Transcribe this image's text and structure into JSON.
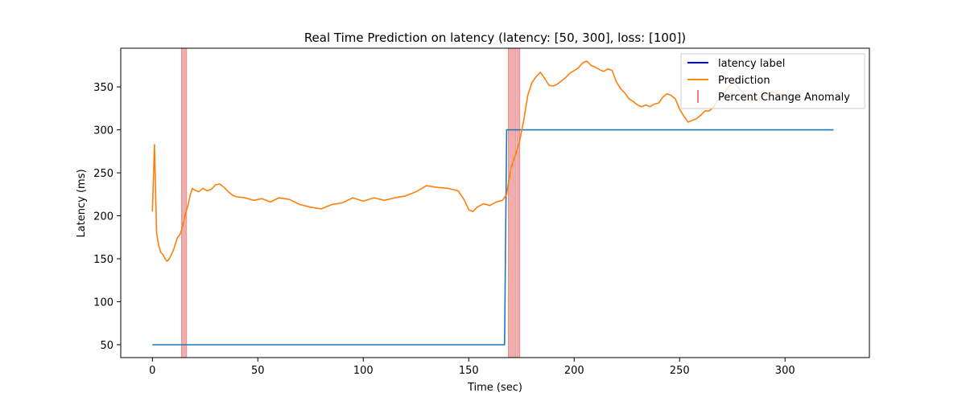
{
  "chart_data": {
    "type": "line",
    "title": "Real Time Prediction on latency (latency: [50, 300], loss: [100])",
    "xlabel": "Time (sec)",
    "ylabel": "Latency (ms)",
    "xlim": [
      -15,
      340
    ],
    "ylim": [
      35,
      395
    ],
    "xticks": [
      0,
      50,
      100,
      150,
      200,
      250,
      300
    ],
    "yticks": [
      50,
      100,
      150,
      200,
      250,
      300,
      350
    ],
    "grid": false,
    "legend_position": "top-right",
    "legend": [
      {
        "label": "latency label",
        "color": "#0000ff",
        "marker": "line"
      },
      {
        "label": "Prediction",
        "color": "#ff8c00",
        "marker": "line"
      },
      {
        "label": "Percent Change Anomaly",
        "color": "#f08080",
        "marker": "vline"
      }
    ],
    "series": [
      {
        "name": "latency label",
        "color": "#1f77b4",
        "x": [
          0,
          167,
          168,
          323
        ],
        "y": [
          50,
          50,
          300,
          300
        ]
      },
      {
        "name": "Prediction",
        "color": "#ff7f0e",
        "x": [
          0,
          1,
          2,
          3,
          4,
          5,
          6,
          7,
          8,
          9,
          10,
          11,
          12,
          13,
          14,
          15,
          16,
          17,
          18,
          19,
          20,
          22,
          24,
          26,
          28,
          30,
          32,
          34,
          36,
          38,
          40,
          44,
          48,
          52,
          56,
          60,
          65,
          70,
          75,
          80,
          85,
          90,
          95,
          100,
          105,
          110,
          115,
          120,
          125,
          130,
          135,
          140,
          145,
          148,
          150,
          152,
          154,
          157,
          160,
          163,
          166,
          168,
          170,
          172,
          174,
          176,
          178,
          180,
          182,
          184,
          186,
          188,
          190,
          192,
          194,
          196,
          198,
          200,
          202,
          204,
          206,
          208,
          210,
          212,
          214,
          216,
          218,
          220,
          222,
          224,
          226,
          228,
          230,
          232,
          234,
          236,
          238,
          240,
          242,
          244,
          246,
          248,
          250,
          252,
          254,
          256,
          258,
          260,
          262,
          264,
          266,
          268,
          270,
          272,
          274,
          276,
          278,
          280,
          282,
          284,
          286,
          288,
          290,
          292,
          294,
          296,
          298,
          300,
          302
        ],
        "y": [
          205,
          283,
          180,
          165,
          157,
          155,
          150,
          147,
          150,
          155,
          160,
          168,
          175,
          178,
          185,
          195,
          205,
          213,
          225,
          232,
          230,
          228,
          232,
          229,
          231,
          236,
          237,
          233,
          228,
          224,
          222,
          221,
          218,
          220,
          216,
          221,
          219,
          213,
          210,
          208,
          213,
          215,
          221,
          217,
          221,
          218,
          221,
          223,
          228,
          235,
          233,
          232,
          229,
          218,
          207,
          205,
          210,
          214,
          212,
          216,
          218,
          225,
          255,
          270,
          285,
          310,
          340,
          355,
          362,
          367,
          360,
          352,
          351,
          353,
          357,
          361,
          366,
          369,
          372,
          378,
          380,
          375,
          373,
          370,
          368,
          371,
          369,
          356,
          348,
          343,
          336,
          333,
          329,
          327,
          329,
          327,
          330,
          331,
          338,
          342,
          340,
          336,
          324,
          316,
          309,
          311,
          313,
          317,
          322,
          322,
          326,
          334,
          340,
          346,
          352,
          354,
          349,
          343,
          339,
          336,
          334,
          338,
          340,
          342,
          344,
          343,
          342,
          341,
          340
        ]
      }
    ],
    "anomaly_lines": {
      "name": "Percent Change Anomaly",
      "color": "#f08080",
      "x": [
        14,
        15,
        16,
        169,
        170,
        171,
        172,
        173,
        174
      ]
    }
  }
}
